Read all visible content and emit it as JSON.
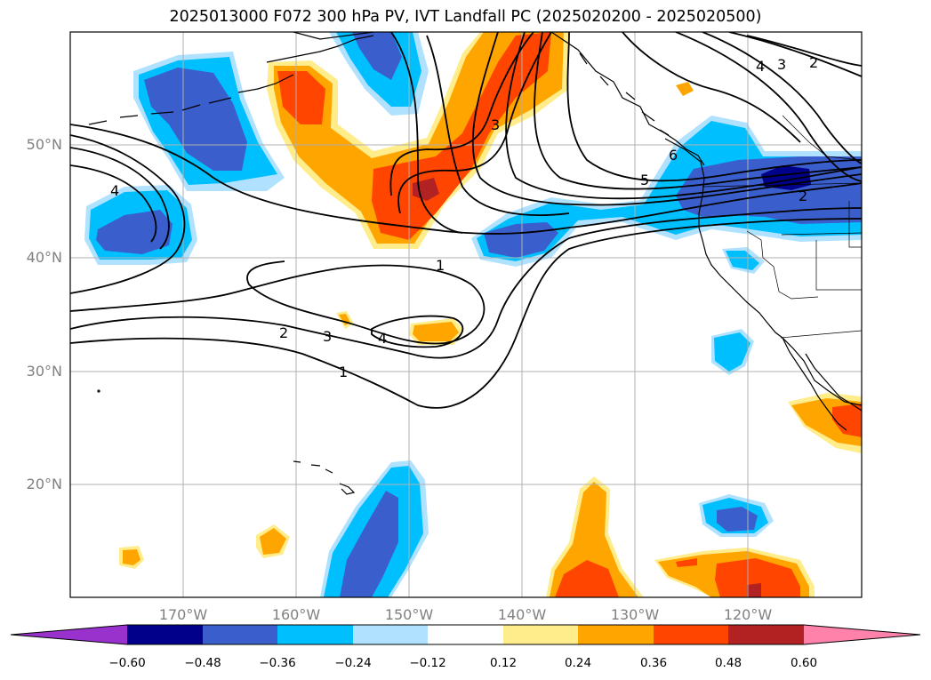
{
  "title": "2025013000 F072 300 hPa PV, IVT Landfall PC (2025020200 - 2025020500)",
  "map": {
    "lat_labels": [
      "50°N",
      "40°N",
      "30°N",
      "20°N"
    ],
    "lon_labels": [
      "170°W",
      "160°W",
      "150°W",
      "140°W",
      "130°W",
      "120°W"
    ],
    "contour_labels": [
      "1",
      "1",
      "2",
      "2",
      "2",
      "3",
      "3",
      "3",
      "4",
      "4",
      "4",
      "5",
      "6"
    ]
  },
  "colorbar": {
    "labels": [
      "−0.60",
      "−0.48",
      "−0.36",
      "−0.24",
      "−0.12",
      "0.12",
      "0.24",
      "0.36",
      "0.48",
      "0.60"
    ],
    "colors": [
      "#9932cc",
      "#00008b",
      "#3a5fcd",
      "#00bfff",
      "#b0e2ff",
      "#ffffff",
      "#ffec8b",
      "#ffa500",
      "#ff4500",
      "#b22222",
      "#ff82ab"
    ]
  }
}
